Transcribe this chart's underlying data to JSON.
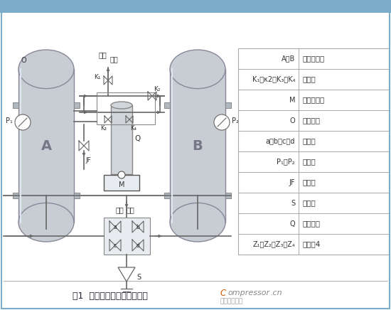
{
  "title": "图1  微热吸附式干燥机结构图",
  "table_rows": [
    [
      "A、B",
      "吸附干燥筒"
    ],
    [
      "K₁、κ2、K₃、K₄",
      "单向阀"
    ],
    [
      "M",
      "程序控制器"
    ],
    [
      "O",
      "电磁阀组"
    ],
    [
      "a、b、c、d",
      "气动阀"
    ],
    [
      "P₁、P₂",
      "压力表"
    ],
    [
      "JF",
      "调节器"
    ],
    [
      "S",
      "消音器"
    ],
    [
      "Q",
      "电加热器"
    ],
    [
      "Z₁、Z₂、Z₃、Z₄",
      "扩散器4"
    ]
  ],
  "font_color": "#333333",
  "line_color": "#666666",
  "vessel_color": "#c8cdd4",
  "vessel_edge": "#888899",
  "table_line_color": "#aaaaaa",
  "top_bar_color": "#7badc8",
  "blue_border_color": "#7badc8"
}
